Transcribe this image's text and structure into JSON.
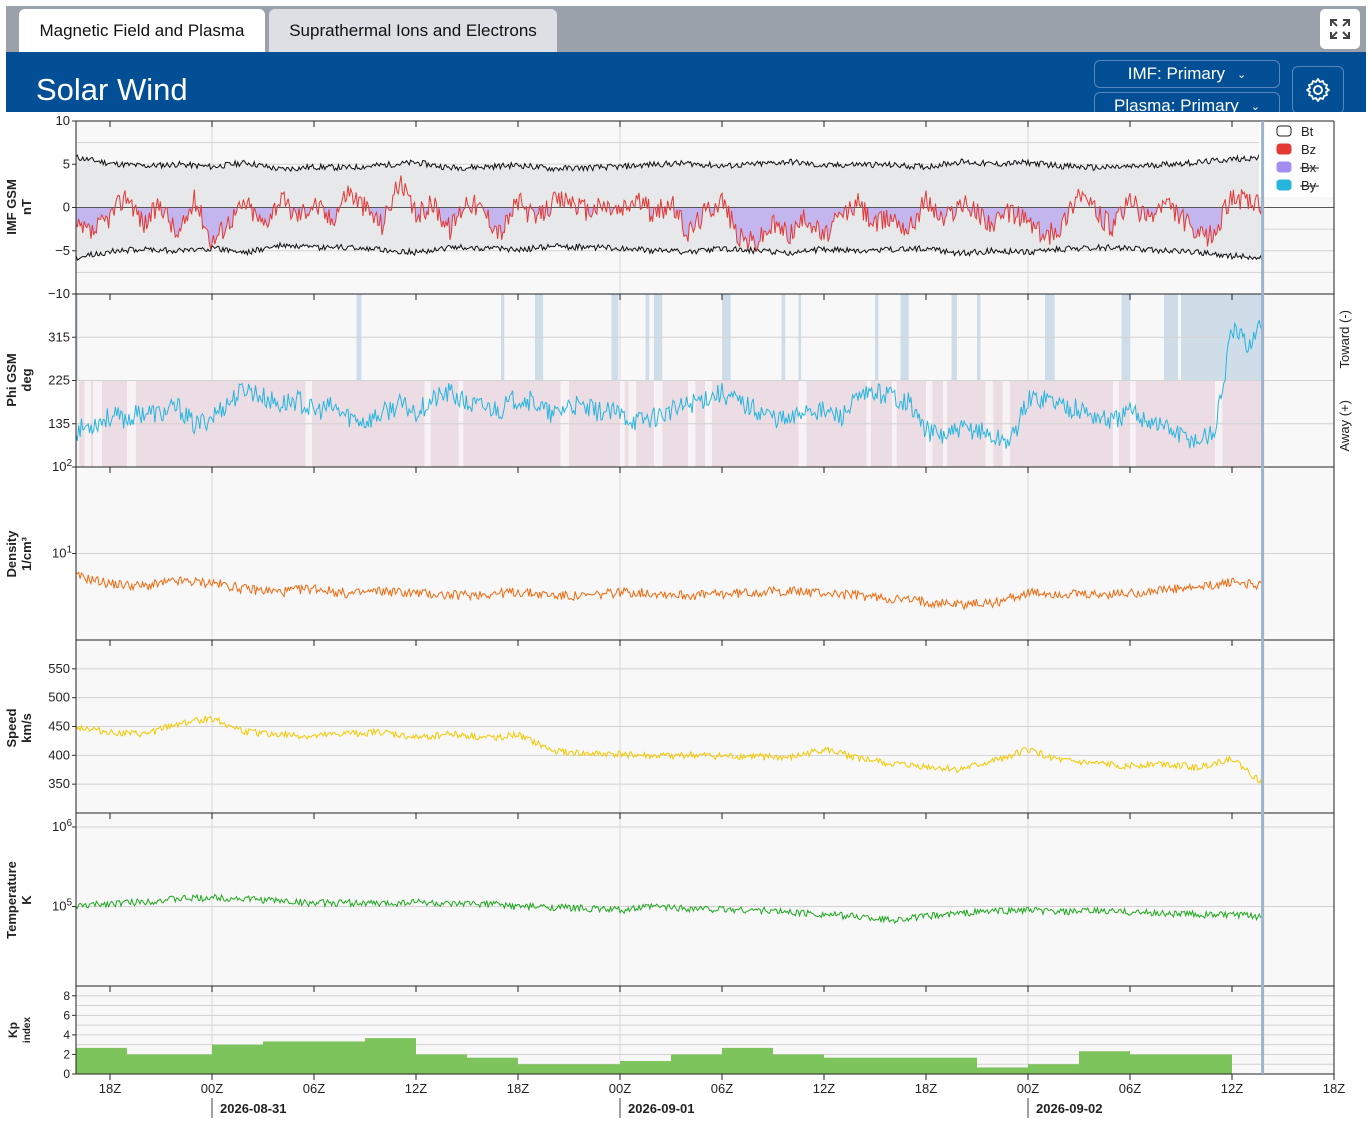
{
  "tabs": [
    {
      "label": "Magnetic Field and Plasma",
      "active": true
    },
    {
      "label": "Suprathermal Ions and Electrons",
      "active": false
    }
  ],
  "header": {
    "title": "Solar Wind",
    "imf_select": "IMF: Primary",
    "plasma_select": "Plasma: Primary"
  },
  "colors": {
    "header": "#024f96",
    "topbar": "#9aa1ab",
    "bt": "#111111",
    "bz": "#e53935",
    "bx": "#a58cf0",
    "by": "#27b5de",
    "density": "#f06a10",
    "speed": "#f5c800",
    "temperature": "#1fa81f",
    "kp": "#7ec45d",
    "toward_band": "#cfdde9",
    "away_band": "#ecdde4"
  },
  "time_axis": {
    "ticks": [
      "18Z",
      "00Z",
      "06Z",
      "12Z",
      "18Z",
      "00Z",
      "06Z",
      "12Z",
      "18Z",
      "00Z",
      "06Z",
      "12Z",
      "18Z"
    ],
    "dates": [
      "2026-08-31",
      "2026-09-01",
      "2026-09-02"
    ],
    "range_hours": [
      -8,
      66
    ],
    "data_end_hour": 61.8
  },
  "chart_data": [
    {
      "type": "line",
      "id": "imf",
      "ylabel": "IMF GSM\nnT",
      "ylim": [
        -10,
        10
      ],
      "yticks": [
        "10",
        "5",
        "0",
        "−5",
        "−10"
      ],
      "legend": [
        {
          "name": "Bt",
          "color": "#111111",
          "active": true
        },
        {
          "name": "Bz",
          "color": "#e53935",
          "active": true
        },
        {
          "name": "Bx",
          "color": "#a58cf0",
          "active": false
        },
        {
          "name": "By",
          "color": "#27b5de",
          "active": false
        }
      ],
      "series": [
        {
          "name": "Bt",
          "x": [
            -8,
            -6,
            -4,
            -2,
            0,
            2,
            4,
            6,
            8,
            10,
            12,
            14,
            16,
            18,
            20,
            22,
            24,
            26,
            28,
            30,
            32,
            34,
            36,
            38,
            40,
            42,
            44,
            46,
            48,
            50,
            52,
            54,
            56,
            58,
            60,
            61.8
          ],
          "values": [
            5.8,
            5.1,
            4.8,
            5.0,
            4.7,
            5.2,
            4.4,
            4.7,
            4.6,
            4.9,
            5.2,
            4.6,
            4.7,
            4.9,
            4.5,
            4.6,
            4.7,
            5.0,
            5.1,
            4.8,
            5.0,
            5.3,
            4.8,
            5.0,
            4.9,
            4.7,
            5.3,
            5.0,
            5.2,
            4.8,
            4.6,
            4.7,
            5.0,
            5.2,
            5.6,
            5.8
          ]
        },
        {
          "name": "Bz",
          "x": [
            -8,
            -7,
            -6,
            -5,
            -4,
            -3,
            -2,
            -1,
            0,
            1,
            2,
            3,
            4,
            5,
            6,
            7,
            8,
            9,
            10,
            11,
            12,
            13,
            14,
            15,
            16,
            17,
            18,
            19,
            20,
            21,
            22,
            23,
            24,
            25,
            26,
            27,
            28,
            29,
            30,
            31,
            32,
            33,
            34,
            35,
            36,
            37,
            38,
            39,
            40,
            41,
            42,
            43,
            44,
            45,
            46,
            47,
            48,
            49,
            50,
            51,
            52,
            53,
            54,
            55,
            56,
            57,
            58,
            59,
            60,
            61,
            61.8
          ],
          "values": [
            -2.5,
            -3.0,
            -1.0,
            1.5,
            -2.0,
            0.5,
            -3.5,
            1.0,
            -4.0,
            -1.5,
            0.5,
            -2.0,
            1.0,
            -1.0,
            0.5,
            -1.5,
            2.0,
            0.0,
            -2.0,
            3.0,
            -1.0,
            0.5,
            -2.5,
            1.0,
            -0.5,
            -3.0,
            0.8,
            -1.5,
            0.5,
            1.0,
            -0.5,
            0.2,
            -0.5,
            1.0,
            -0.8,
            0.5,
            -3.0,
            -0.5,
            1.0,
            -3.5,
            -4.0,
            -2.0,
            -3.0,
            -1.0,
            -3.5,
            -1.0,
            0.5,
            -2.0,
            -1.0,
            -2.5,
            1.0,
            -1.5,
            0.5,
            -0.5,
            -2.0,
            -0.5,
            -1.5,
            -3.5,
            -2.0,
            2.0,
            -0.5,
            -2.5,
            1.0,
            -1.5,
            0.5,
            -1.0,
            -3.5,
            -3.0,
            1.5,
            0.5,
            0.0
          ]
        }
      ]
    },
    {
      "type": "scatter",
      "id": "phi",
      "ylabel": "Phi GSM\ndeg",
      "ylim": [
        45,
        405
      ],
      "yticks": [
        "315",
        "225",
        "135"
      ],
      "right_labels": [
        "Toward (-)",
        "Away (+)"
      ],
      "series": [
        {
          "name": "Phi",
          "x": [
            -8,
            -7,
            -6,
            -5,
            -4,
            -3,
            -2,
            -1,
            0,
            1,
            2,
            3,
            4,
            5,
            6,
            7,
            8,
            9,
            10,
            11,
            12,
            13,
            14,
            15,
            16,
            17,
            18,
            19,
            20,
            21,
            22,
            23,
            24,
            25,
            26,
            27,
            28,
            29,
            30,
            31,
            32,
            33,
            34,
            35,
            36,
            37,
            38,
            39,
            40,
            41,
            42,
            43,
            44,
            45,
            46,
            47,
            48,
            49,
            50,
            51,
            52,
            53,
            54,
            55,
            56,
            57,
            58,
            59,
            60,
            61,
            61.8
          ],
          "values": [
            120,
            135,
            150,
            145,
            160,
            155,
            170,
            130,
            150,
            180,
            210,
            190,
            175,
            185,
            160,
            170,
            150,
            140,
            155,
            175,
            160,
            185,
            200,
            175,
            170,
            165,
            190,
            180,
            150,
            175,
            165,
            160,
            155,
            140,
            150,
            160,
            175,
            190,
            200,
            180,
            165,
            150,
            140,
            170,
            160,
            150,
            185,
            200,
            195,
            180,
            120,
            110,
            120,
            125,
            105,
            100,
            185,
            190,
            175,
            165,
            150,
            140,
            160,
            145,
            130,
            110,
            100,
            120,
            330,
            300,
            345
          ]
        }
      ],
      "bands": [
        {
          "name": "Toward (-)",
          "range": [
            225,
            405
          ]
        },
        {
          "name": "Away (+)",
          "range": [
            45,
            225
          ]
        }
      ]
    },
    {
      "type": "line",
      "id": "density",
      "ylabel": "Density\n1/cm³",
      "scale": "log",
      "ylim": [
        1,
        100
      ],
      "yticks": [
        "10²",
        "10¹"
      ],
      "series": [
        {
          "name": "Density",
          "x": [
            -8,
            -6,
            -4,
            -2,
            0,
            2,
            4,
            6,
            8,
            10,
            12,
            14,
            16,
            18,
            20,
            22,
            24,
            26,
            28,
            30,
            32,
            34,
            36,
            38,
            40,
            42,
            44,
            46,
            48,
            50,
            52,
            54,
            56,
            58,
            60,
            61.8
          ],
          "values": [
            5.5,
            4.5,
            4.2,
            4.8,
            4.6,
            3.9,
            3.6,
            4.0,
            3.4,
            3.7,
            3.5,
            3.3,
            3.4,
            3.6,
            3.3,
            3.2,
            3.6,
            3.5,
            3.3,
            3.4,
            3.6,
            3.7,
            3.5,
            3.3,
            3.0,
            2.8,
            2.6,
            2.7,
            3.5,
            3.4,
            3.3,
            3.5,
            3.8,
            4.0,
            4.7,
            4.3
          ]
        }
      ]
    },
    {
      "type": "line",
      "id": "speed",
      "ylabel": "Speed\nkm/s",
      "ylim": [
        300,
        600
      ],
      "yticks": [
        "550",
        "500",
        "450",
        "400",
        "350"
      ],
      "series": [
        {
          "name": "Speed",
          "x": [
            -8,
            -6,
            -4,
            -2,
            0,
            2,
            4,
            6,
            8,
            10,
            12,
            14,
            16,
            18,
            20,
            22,
            24,
            26,
            28,
            30,
            32,
            34,
            36,
            38,
            40,
            42,
            44,
            46,
            48,
            50,
            52,
            54,
            56,
            58,
            60,
            61.8
          ],
          "values": [
            450,
            440,
            436,
            455,
            465,
            440,
            436,
            432,
            438,
            440,
            430,
            438,
            430,
            435,
            408,
            402,
            402,
            398,
            400,
            398,
            398,
            395,
            410,
            395,
            385,
            380,
            375,
            390,
            410,
            390,
            385,
            382,
            386,
            378,
            395,
            350
          ]
        }
      ]
    },
    {
      "type": "line",
      "id": "temperature",
      "ylabel": "Temperature\nK",
      "scale": "log",
      "ylim": [
        10000,
        1500000
      ],
      "yticks": [
        "10⁶",
        "10⁵"
      ],
      "series": [
        {
          "name": "Temperature",
          "x": [
            -8,
            -6,
            -4,
            -2,
            0,
            2,
            4,
            6,
            8,
            10,
            12,
            14,
            16,
            18,
            20,
            22,
            24,
            26,
            28,
            30,
            32,
            34,
            36,
            38,
            40,
            42,
            44,
            46,
            48,
            50,
            52,
            54,
            56,
            58,
            60,
            61.8
          ],
          "values": [
            100000,
            110000,
            115000,
            125000,
            130000,
            125000,
            118000,
            110000,
            112000,
            108000,
            115000,
            105000,
            110000,
            100000,
            98000,
            95000,
            90000,
            100000,
            95000,
            92000,
            90000,
            85000,
            80000,
            75000,
            68000,
            75000,
            82000,
            88000,
            90000,
            85000,
            88000,
            85000,
            82000,
            80000,
            78000,
            75000
          ]
        }
      ]
    },
    {
      "type": "bar",
      "id": "kp",
      "ylabel": "Kp\nindex",
      "ylim": [
        0,
        9
      ],
      "yticks": [
        "8",
        "6",
        "4",
        "2",
        "0"
      ],
      "series": [
        {
          "name": "Kp",
          "x_start": [
            -8,
            -6,
            -3,
            0,
            3,
            6,
            9,
            12,
            15,
            18,
            21,
            24,
            27,
            30,
            33,
            36,
            39,
            42,
            45,
            48,
            51,
            54,
            57
          ],
          "values": [
            2.67,
            2.0,
            2.0,
            3.0,
            3.33,
            3.33,
            3.67,
            2.0,
            1.67,
            1.0,
            1.0,
            1.33,
            2.0,
            2.67,
            2.0,
            1.67,
            1.67,
            1.67,
            0.67,
            1.0,
            2.33,
            2.0,
            2.0
          ]
        }
      ]
    }
  ]
}
